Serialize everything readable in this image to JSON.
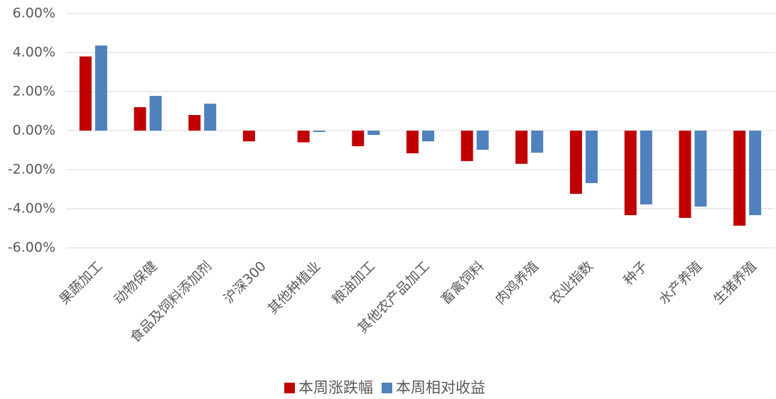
{
  "chart_data": {
    "type": "bar",
    "categories": [
      "果蔬加工",
      "动物保健",
      "食品及饲料添加剂",
      "沪深300",
      "其他种植业",
      "粮油加工",
      "其他农产品加工",
      "畜禽饲料",
      "肉鸡养殖",
      "农业指数",
      "种子",
      "水产养殖",
      "生猪养殖"
    ],
    "series": [
      {
        "name": "本周涨跌幅",
        "color": "#c00000",
        "values": [
          3.8,
          1.2,
          0.8,
          -0.55,
          -0.6,
          -0.8,
          -1.16,
          -1.56,
          -1.7,
          -3.24,
          -4.33,
          -4.47,
          -4.87
        ]
      },
      {
        "name": "本周相对收益",
        "color": "#4f81bd",
        "values": [
          4.36,
          1.78,
          1.38,
          0,
          -0.07,
          -0.22,
          -0.55,
          -0.98,
          -1.13,
          -2.69,
          -3.78,
          -3.89,
          -4.33
        ]
      }
    ],
    "ylim": [
      -6,
      6
    ],
    "yticks": [
      {
        "value": -6,
        "label": "-6.00%"
      },
      {
        "value": -4,
        "label": "-4.00%"
      },
      {
        "value": -2,
        "label": "-2.00%"
      },
      {
        "value": 0,
        "label": "0.00%"
      },
      {
        "value": 2,
        "label": "2.00%"
      },
      {
        "value": 4,
        "label": "4.00%"
      },
      {
        "value": 6,
        "label": "6.00%"
      }
    ],
    "grid": true,
    "legend": "bottom"
  }
}
